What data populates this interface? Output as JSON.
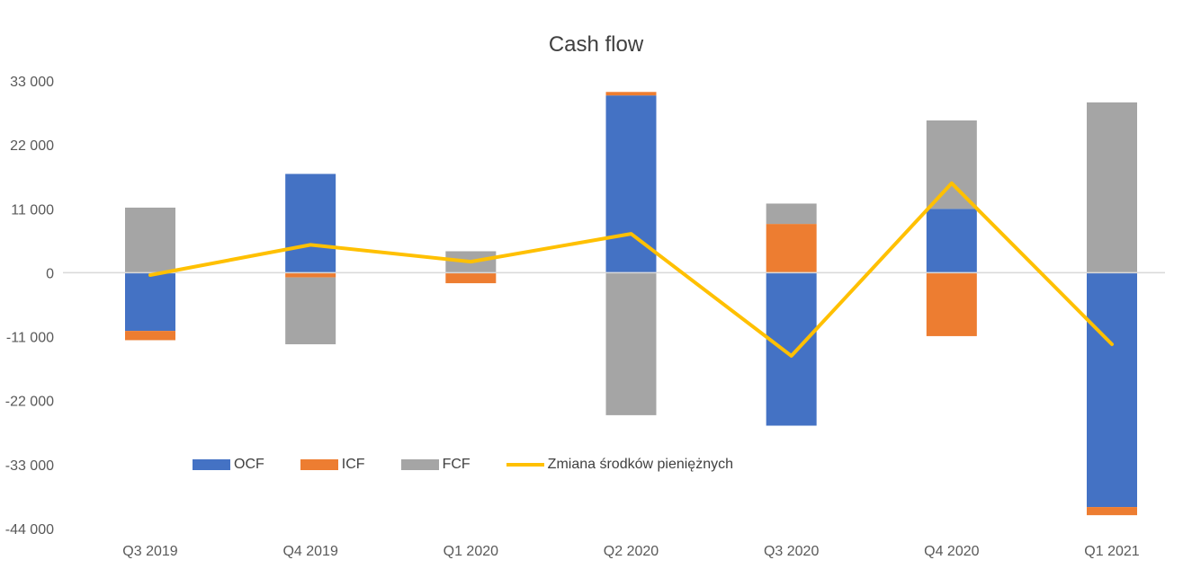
{
  "chart_data": {
    "type": "bar",
    "stacked": true,
    "title": "Cash flow",
    "categories": [
      "Q3 2019",
      "Q4 2019",
      "Q1 2020",
      "Q2 2020",
      "Q3 2020",
      "Q4 2020",
      "Q1 2021"
    ],
    "y_ticks": [
      "33 000",
      "22 000",
      "11 000",
      "0",
      "-11 000",
      "-22 000",
      "-33 000",
      "-44 000"
    ],
    "ylim": [
      -44000,
      33000
    ],
    "grid": false,
    "legend_position": "bottom-left",
    "series": [
      {
        "name": "OCF",
        "kind": "bar",
        "color": "#4472C4",
        "values": [
          -10000,
          17000,
          0,
          30500,
          -26300,
          11000,
          -40300
        ]
      },
      {
        "name": "ICF",
        "kind": "bar",
        "color": "#ED7D31",
        "values": [
          -1600,
          -800,
          -1800,
          600,
          8400,
          -10900,
          -1400
        ]
      },
      {
        "name": "FCF",
        "kind": "bar",
        "color": "#A5A5A5",
        "values": [
          11200,
          -11500,
          3700,
          -24500,
          3500,
          15200,
          29300
        ]
      },
      {
        "name": "Zmiana środków pieniężnych",
        "kind": "line",
        "color": "#FFC000",
        "values": [
          -400,
          4800,
          1900,
          6700,
          -14300,
          15400,
          -12300
        ]
      }
    ]
  }
}
